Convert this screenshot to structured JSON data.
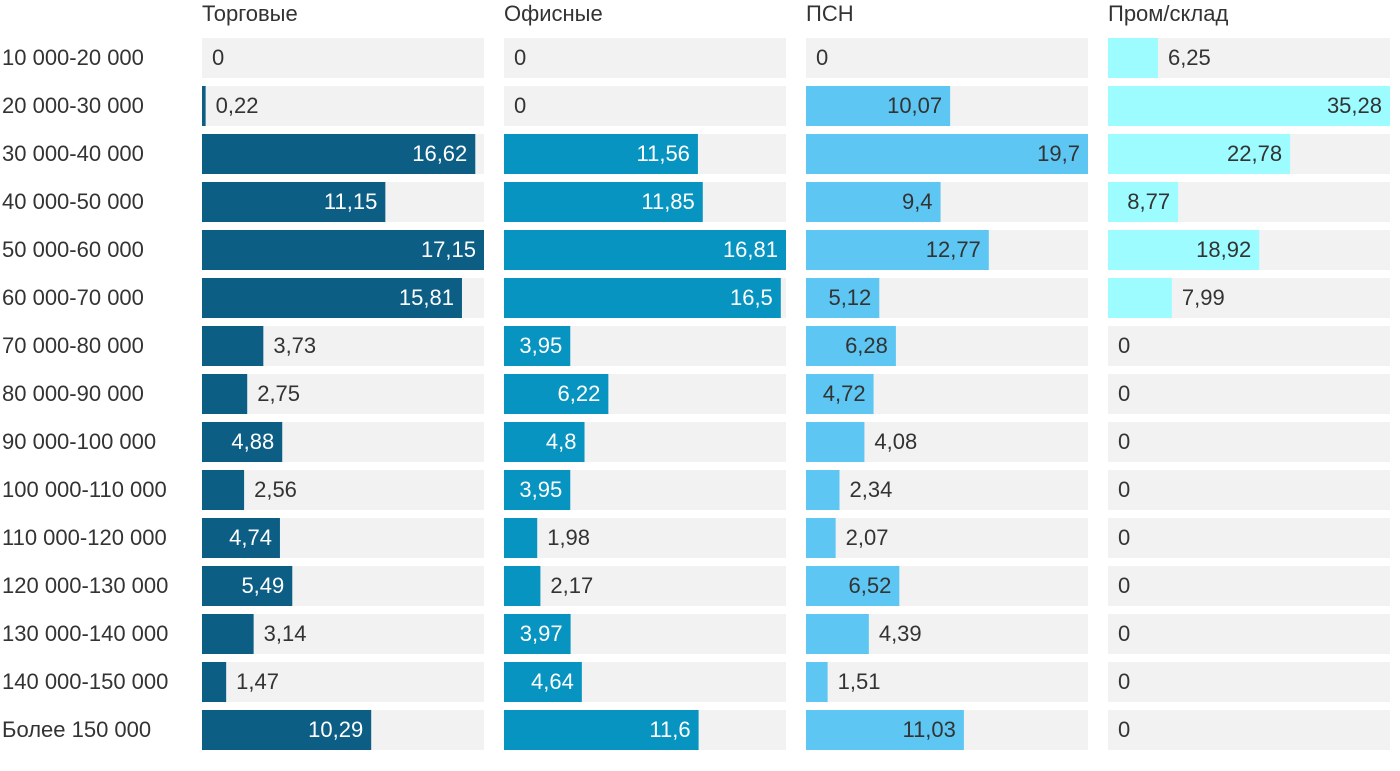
{
  "chart_data": {
    "type": "bar",
    "orientation": "horizontal",
    "categories": [
      "10 000-20 000",
      "20 000-30 000",
      "30 000-40 000",
      "40 000-50 000",
      "50 000-60 000",
      "60 000-70 000",
      "70 000-80 000",
      "80 000-90 000",
      "90 000-100 000",
      "100 000-110 000",
      "110 000-120 000",
      "120 000-130 000",
      "130 000-140 000",
      "140 000-150 000",
      "Более 150 000"
    ],
    "series": [
      {
        "name": "Торговые",
        "color": "#0c5e85",
        "label_color": "#ffffff",
        "values": [
          0,
          0.22,
          16.62,
          11.15,
          17.15,
          15.81,
          3.73,
          2.75,
          4.88,
          2.56,
          4.74,
          5.49,
          3.14,
          1.47,
          10.29
        ],
        "value_labels": [
          "0",
          "0,22",
          "16,62",
          "11,15",
          "17,15",
          "15,81",
          "3,73",
          "2,75",
          "4,88",
          "2,56",
          "4,74",
          "5,49",
          "3,14",
          "1,47",
          "10,29"
        ]
      },
      {
        "name": "Офисные",
        "color": "#0794c1",
        "label_color": "#ffffff",
        "values": [
          0,
          0,
          11.56,
          11.85,
          16.81,
          16.5,
          3.95,
          6.22,
          4.8,
          3.95,
          1.98,
          2.17,
          3.97,
          4.64,
          11.6
        ],
        "value_labels": [
          "0",
          "0",
          "11,56",
          "11,85",
          "16,81",
          "16,5",
          "3,95",
          "6,22",
          "4,8",
          "3,95",
          "1,98",
          "2,17",
          "3,97",
          "4,64",
          "11,6"
        ]
      },
      {
        "name": "ПСН",
        "color": "#5dc6f3",
        "label_color": "#333333",
        "values": [
          0,
          10.07,
          19.7,
          9.4,
          12.77,
          5.12,
          6.28,
          4.72,
          4.08,
          2.34,
          2.07,
          6.52,
          4.39,
          1.51,
          11.03
        ],
        "value_labels": [
          "0",
          "10,07",
          "19,7",
          "9,4",
          "12,77",
          "5,12",
          "6,28",
          "4,72",
          "4,08",
          "2,34",
          "2,07",
          "6,52",
          "4,39",
          "1,51",
          "11,03"
        ]
      },
      {
        "name": "Пром/склад",
        "color": "#9cfcff",
        "label_color": "#333333",
        "values": [
          6.25,
          35.28,
          22.78,
          8.77,
          18.92,
          7.99,
          0,
          0,
          0,
          0,
          0,
          0,
          0,
          0,
          0
        ],
        "value_labels": [
          "6,25",
          "35,28",
          "22,78",
          "8,77",
          "18,92",
          "7,99",
          "0",
          "0",
          "0",
          "0",
          "0",
          "0",
          "0",
          "0",
          "0"
        ]
      }
    ]
  }
}
